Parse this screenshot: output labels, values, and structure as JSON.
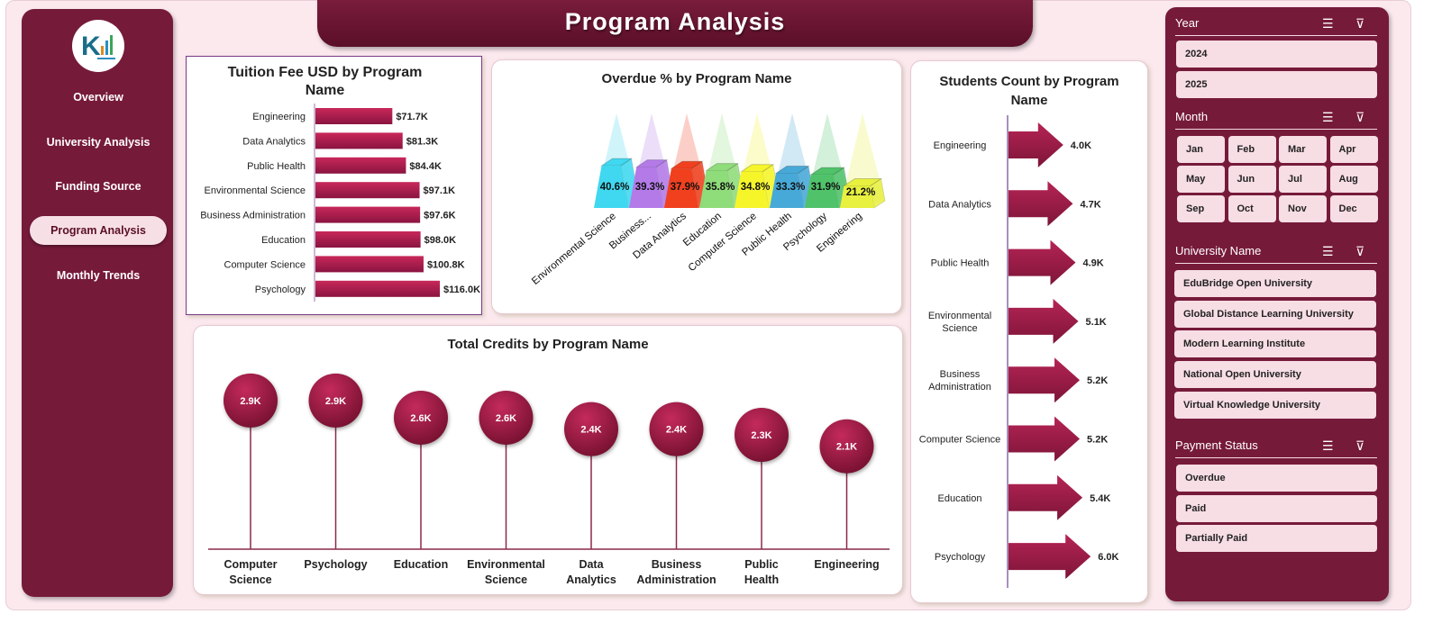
{
  "title": "Program Analysis",
  "sidebar": {
    "items": [
      {
        "label": "Overview"
      },
      {
        "label": "University Analysis"
      },
      {
        "label": "Funding Source"
      },
      {
        "label": "Program Analysis",
        "active": true
      },
      {
        "label": "Monthly Trends"
      }
    ]
  },
  "slicers": {
    "year": {
      "label": "Year",
      "options": [
        "2024",
        "2025"
      ]
    },
    "month": {
      "label": "Month",
      "options": [
        "Jan",
        "Feb",
        "Mar",
        "Apr",
        "May",
        "Jun",
        "Jul",
        "Aug",
        "Sep",
        "Oct",
        "Nov",
        "Dec"
      ]
    },
    "university": {
      "label": "University Name",
      "options": [
        "EduBridge Open University",
        "Global Distance Learning University",
        "Modern Learning Institute",
        "National Open University",
        "Virtual Knowledge University"
      ]
    },
    "payment": {
      "label": "Payment Status",
      "options": [
        "Overdue",
        "Paid",
        "Partially Paid"
      ]
    },
    "icons": [
      "multi-select-icon",
      "clear-filter-icon"
    ]
  },
  "colors": {
    "maroon": "#761a3a",
    "bar": "#a01a4a",
    "background": "#fbe9ee"
  },
  "chart_data": [
    {
      "type": "bar",
      "orientation": "horizontal",
      "title": "Tuition Fee USD by Program Name",
      "categories": [
        "Engineering",
        "Data Analytics",
        "Public Health",
        "Environmental Science",
        "Business Administration",
        "Education",
        "Computer Science",
        "Psychology"
      ],
      "values": [
        71.7,
        81.3,
        84.4,
        97.1,
        97.6,
        98.0,
        100.8,
        116.0
      ],
      "labels": [
        "$71.7K",
        "$81.3K",
        "$84.4K",
        "$97.1K",
        "$97.6K",
        "$98.0K",
        "$100.8K",
        "$116.0K"
      ]
    },
    {
      "type": "bar",
      "style": "3d-pyramid",
      "title": "Overdue % by Program Name",
      "categories": [
        "Environmental Science",
        "Business...",
        "Data Analytics",
        "Education",
        "Computer Science",
        "Public Health",
        "Psychology",
        "Engineering"
      ],
      "values": [
        40.6,
        39.3,
        37.9,
        35.8,
        34.8,
        33.3,
        31.9,
        21.2
      ],
      "labels": [
        "40.6%",
        "39.3%",
        "37.9%",
        "35.8%",
        "34.8%",
        "33.3%",
        "31.9%",
        "21.2%"
      ],
      "colors": [
        "#3fd8f0",
        "#b37ae8",
        "#f0401e",
        "#8fdc7a",
        "#f5f52a",
        "#47a9d8",
        "#4fc26a",
        "#e8f040"
      ]
    },
    {
      "type": "lollipop",
      "title": "Total Credits by Program Name",
      "categories": [
        "Computer Science",
        "Psychology",
        "Education",
        "Environmental Science",
        "Data Analytics",
        "Business Administration",
        "Public Health",
        "Engineering"
      ],
      "values": [
        2.9,
        2.9,
        2.6,
        2.6,
        2.4,
        2.4,
        2.3,
        2.1
      ],
      "labels": [
        "2.9K",
        "2.9K",
        "2.6K",
        "2.6K",
        "2.4K",
        "2.4K",
        "2.3K",
        "2.1K"
      ]
    },
    {
      "type": "bar",
      "orientation": "horizontal",
      "style": "arrow",
      "title": "Students Count by Program Name",
      "categories": [
        "Engineering",
        "Data Analytics",
        "Public Health",
        "Environmental Science",
        "Business Administration",
        "Computer Science",
        "Education",
        "Psychology"
      ],
      "values": [
        4.0,
        4.7,
        4.9,
        5.1,
        5.2,
        5.2,
        5.4,
        6.0
      ],
      "labels": [
        "4.0K",
        "4.7K",
        "4.9K",
        "5.1K",
        "5.2K",
        "5.2K",
        "5.4K",
        "6.0K"
      ]
    }
  ]
}
